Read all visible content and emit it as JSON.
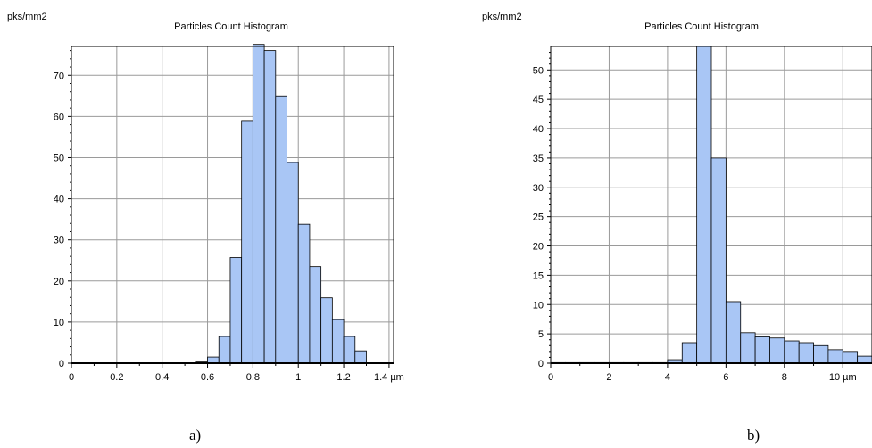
{
  "chart_data": [
    {
      "type": "bar",
      "title": "Particles Count Histogram",
      "ylabel": "pks/mm2",
      "x_unit": "µm",
      "bin_width": 0.05,
      "bin_starts": [
        0,
        0.05,
        0.1,
        0.15,
        0.2,
        0.25,
        0.3,
        0.35,
        0.4,
        0.45,
        0.5,
        0.55,
        0.6,
        0.65,
        0.7,
        0.75,
        0.8,
        0.85,
        0.9,
        0.95,
        1.0,
        1.05,
        1.1,
        1.15,
        1.2,
        1.25,
        1.3,
        1.35
      ],
      "values": [
        0.1,
        0.1,
        0.1,
        0.1,
        0.1,
        0.1,
        0.1,
        0.1,
        0.1,
        0.1,
        0.1,
        0.3,
        1.5,
        6.5,
        25.7,
        58.8,
        77.5,
        76,
        64.8,
        48.8,
        33.8,
        23.5,
        15.9,
        10.6,
        6.5,
        3,
        0,
        0
      ],
      "xlim": [
        0,
        1.42
      ],
      "ylim": [
        0,
        77
      ],
      "xticks": [
        "0",
        "0.2",
        "0.4",
        "0.6",
        "0.8",
        "1",
        "1.2",
        "1.4 µm"
      ],
      "xtick_values": [
        0,
        0.2,
        0.4,
        0.6,
        0.8,
        1.0,
        1.2,
        1.4
      ],
      "yticks": [
        "0",
        "10",
        "20",
        "30",
        "40",
        "50",
        "60",
        "70"
      ],
      "ytick_values": [
        0,
        10,
        20,
        30,
        40,
        50,
        60,
        70
      ],
      "grid": true,
      "caption": "a)",
      "bar_color": "#a9c6f5",
      "edge_color": "#000000"
    },
    {
      "type": "bar",
      "title": "Particles Count Histogram",
      "ylabel": "pks/mm2",
      "x_unit": "µm",
      "bin_width": 0.5,
      "bin_starts": [
        0,
        0.5,
        1,
        1.5,
        2,
        2.5,
        3,
        3.5,
        4,
        4.5,
        5,
        5.5,
        6,
        6.5,
        7,
        7.5,
        8,
        8.5,
        9,
        9.5,
        10,
        10.5
      ],
      "values": [
        0.1,
        0.1,
        0.1,
        0.1,
        0.1,
        0.1,
        0.1,
        0.1,
        0.6,
        3.5,
        54,
        35,
        10.5,
        5.2,
        4.5,
        4.3,
        3.8,
        3.5,
        3,
        2.3,
        2,
        1.2
      ],
      "xlim": [
        0,
        11
      ],
      "ylim": [
        0,
        54
      ],
      "xticks": [
        "0",
        "2",
        "4",
        "6",
        "8",
        "10 µm"
      ],
      "xtick_values": [
        0,
        2,
        4,
        6,
        8,
        10
      ],
      "yticks": [
        "0",
        "5",
        "10",
        "15",
        "20",
        "25",
        "30",
        "35",
        "40",
        "45",
        "50"
      ],
      "ytick_values": [
        0,
        5,
        10,
        15,
        20,
        25,
        30,
        35,
        40,
        45,
        50
      ],
      "grid": true,
      "caption": "b)",
      "bar_color": "#a9c6f5",
      "edge_color": "#000000"
    }
  ]
}
